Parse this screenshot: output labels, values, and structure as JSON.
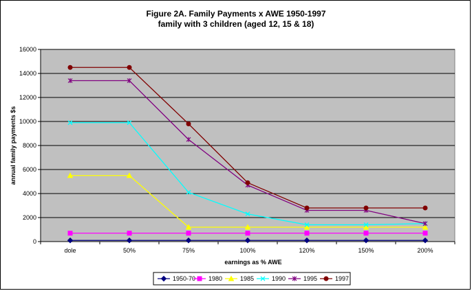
{
  "chart_data": {
    "type": "line",
    "title": "Figure 2A.   Family Payments x AWE   1950-1997",
    "subtitle": "family with 3 children (aged 12, 15 & 18)",
    "xlabel": "earnings as % AWE",
    "ylabel": "annual family payments $s",
    "categories": [
      "dole",
      "50%",
      "75%",
      "100%",
      "120%",
      "150%",
      "200%"
    ],
    "ylim": [
      0,
      16000
    ],
    "yticks": [
      0,
      2000,
      4000,
      6000,
      8000,
      10000,
      12000,
      14000,
      16000
    ],
    "grid": true,
    "plot_background": "#c0c0c0",
    "legend_position": "bottom",
    "series": [
      {
        "name": "1950-70",
        "color": "#000080",
        "marker": "diamond",
        "values": [
          100,
          100,
          100,
          100,
          100,
          100,
          100
        ]
      },
      {
        "name": "1980",
        "color": "#ff00ff",
        "marker": "square",
        "values": [
          700,
          700,
          700,
          700,
          700,
          700,
          700
        ]
      },
      {
        "name": "1985",
        "color": "#ffff00",
        "marker": "triangle",
        "values": [
          5500,
          5500,
          1200,
          1200,
          1200,
          1200,
          1200
        ]
      },
      {
        "name": "1990",
        "color": "#00ffff",
        "marker": "x",
        "values": [
          9900,
          9900,
          4100,
          2300,
          1400,
          1400,
          1500
        ]
      },
      {
        "name": "1995",
        "color": "#800080",
        "marker": "star",
        "values": [
          13400,
          13400,
          8500,
          4700,
          2600,
          2600,
          1500
        ]
      },
      {
        "name": "1997",
        "color": "#800000",
        "marker": "circle",
        "values": [
          14500,
          14500,
          9800,
          4900,
          2800,
          2800,
          2800
        ]
      }
    ]
  }
}
